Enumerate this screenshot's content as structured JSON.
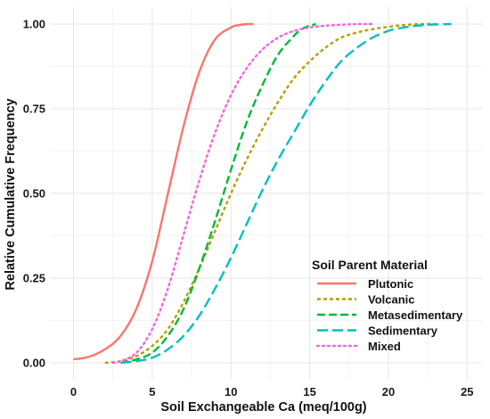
{
  "chart_data": {
    "type": "line",
    "title": "",
    "xlabel": "Soil Exchangeable Ca (meq/100g)",
    "ylabel": "Relative Cumulative Frequency",
    "xlim": [
      -1.5,
      26
    ],
    "ylim": [
      -0.05,
      1.05
    ],
    "x_ticks": [
      0,
      5,
      10,
      15,
      20,
      25
    ],
    "y_ticks": [
      0,
      0.25,
      0.5,
      0.75,
      1.0
    ],
    "x_tick_labels": [
      "0",
      "5",
      "10",
      "15",
      "20",
      "25"
    ],
    "y_tick_labels": [
      "0.00",
      "0.25",
      "0.50",
      "0.75",
      "1.00"
    ],
    "grid": true,
    "legend_title": "Soil  Parent  Material",
    "legend_position": "bottom-right",
    "series": [
      {
        "name": "Plutonic",
        "color": "#F8766D",
        "dash": "solid",
        "x": [
          0,
          1,
          2,
          3,
          4,
          5,
          6,
          7,
          8,
          9,
          10,
          10.5,
          11,
          11.4
        ],
        "y": [
          0.01,
          0.018,
          0.04,
          0.08,
          0.16,
          0.3,
          0.5,
          0.7,
          0.86,
          0.955,
          0.99,
          0.997,
          1.0,
          1.0
        ]
      },
      {
        "name": "Volcanic",
        "color": "#B79F00",
        "dash": "short",
        "x": [
          2,
          3,
          4,
          5,
          6,
          7,
          8,
          9,
          10,
          11,
          12,
          13,
          14,
          15,
          16,
          17,
          18,
          19,
          20,
          21,
          22,
          23
        ],
        "y": [
          0.0,
          0.005,
          0.02,
          0.05,
          0.1,
          0.18,
          0.28,
          0.39,
          0.5,
          0.6,
          0.69,
          0.77,
          0.84,
          0.89,
          0.93,
          0.96,
          0.975,
          0.985,
          0.992,
          0.997,
          1.0,
          1.0
        ]
      },
      {
        "name": "Metasedimentary",
        "color": "#00BA38",
        "dash": "long",
        "x": [
          3,
          4,
          5,
          6,
          7,
          8,
          9,
          10,
          11,
          12,
          13,
          14,
          14.5,
          15,
          15.4
        ],
        "y": [
          0.0,
          0.01,
          0.03,
          0.08,
          0.16,
          0.28,
          0.42,
          0.57,
          0.71,
          0.82,
          0.91,
          0.965,
          0.985,
          0.995,
          1.0
        ]
      },
      {
        "name": "Sedimentary",
        "color": "#00BFC4",
        "dash": "longer",
        "x": [
          3,
          4,
          5,
          6,
          7,
          8,
          9,
          10,
          11,
          12,
          13,
          14,
          15,
          16,
          17,
          18,
          19,
          20,
          21,
          22,
          23,
          24
        ],
        "y": [
          0.0,
          0.005,
          0.015,
          0.04,
          0.08,
          0.14,
          0.22,
          0.31,
          0.41,
          0.51,
          0.6,
          0.68,
          0.76,
          0.83,
          0.89,
          0.93,
          0.96,
          0.98,
          0.99,
          0.996,
          0.999,
          1.0
        ]
      },
      {
        "name": "Mixed",
        "color": "#F564E3",
        "dash": "dotted",
        "x": [
          2.5,
          3,
          4,
          5,
          6,
          7,
          8,
          9,
          10,
          11,
          12,
          13,
          14,
          15,
          16,
          17,
          18,
          19
        ],
        "y": [
          0.0,
          0.005,
          0.03,
          0.1,
          0.22,
          0.38,
          0.54,
          0.68,
          0.79,
          0.87,
          0.925,
          0.96,
          0.98,
          0.99,
          0.995,
          0.998,
          1.0,
          1.0
        ]
      }
    ]
  }
}
